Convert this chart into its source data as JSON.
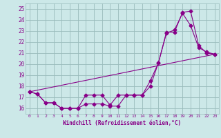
{
  "xlabel": "Windchill (Refroidissement éolien,°C)",
  "bg_color": "#cce8e8",
  "line_color": "#880088",
  "grid_color": "#99bbbb",
  "xlim": [
    -0.5,
    23.5
  ],
  "ylim": [
    15.5,
    25.5
  ],
  "xticks": [
    0,
    1,
    2,
    3,
    4,
    5,
    6,
    7,
    8,
    9,
    10,
    11,
    12,
    13,
    14,
    15,
    16,
    17,
    18,
    19,
    20,
    21,
    22,
    23
  ],
  "yticks": [
    16,
    17,
    18,
    19,
    20,
    21,
    22,
    23,
    24,
    25
  ],
  "series1_x": [
    0,
    1,
    2,
    3,
    4,
    5,
    6,
    7,
    8,
    9,
    10,
    11,
    12,
    13,
    14,
    15,
    16,
    17,
    18,
    19,
    20,
    21,
    22,
    23
  ],
  "series1_y": [
    17.5,
    17.3,
    16.5,
    16.5,
    16.0,
    16.0,
    16.0,
    17.2,
    17.2,
    17.2,
    16.3,
    17.2,
    17.2,
    17.2,
    17.2,
    18.0,
    20.1,
    22.8,
    23.1,
    24.6,
    23.5,
    21.5,
    21.1,
    20.9
  ],
  "series2_x": [
    0,
    1,
    2,
    3,
    4,
    5,
    6,
    7,
    8,
    9,
    10,
    11,
    12,
    13,
    14,
    15,
    16,
    17,
    18,
    19,
    20,
    21,
    22,
    23
  ],
  "series2_y": [
    17.5,
    17.3,
    16.5,
    16.5,
    16.0,
    16.0,
    16.0,
    16.4,
    16.4,
    16.4,
    16.2,
    16.2,
    17.2,
    17.2,
    17.2,
    18.5,
    20.1,
    22.9,
    22.9,
    24.7,
    24.8,
    21.7,
    21.0,
    20.9
  ],
  "series3_x": [
    0,
    23
  ],
  "series3_y": [
    17.5,
    20.9
  ]
}
